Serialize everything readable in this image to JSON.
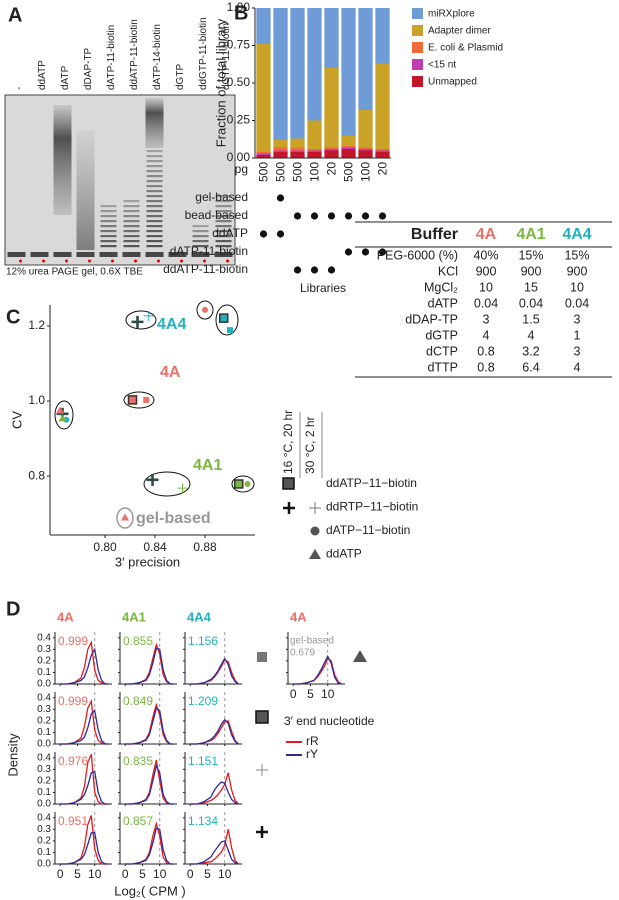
{
  "gel": {
    "lanes": [
      "-",
      "ddATP",
      "dATP",
      "dDAP-TP",
      "dATP-11-biotin",
      "ddATP-11-biotin",
      "dATP-14-biotin",
      "dGTP",
      "ddGTP-11-biotin",
      "dGTP-11-biotin"
    ],
    "caption": "12% urea PAGE gel, 0.6X TBE"
  },
  "chart_data": [
    {
      "type": "bar",
      "stacked": true,
      "ylabel": "Fraction of total library",
      "xlabel": "pg",
      "categories": [
        "500",
        "500",
        "500",
        "100",
        "20",
        "500",
        "100",
        "20"
      ],
      "ylim": [
        0,
        1
      ],
      "yticks": [
        {
          "value": 0,
          "label": "0.00"
        },
        {
          "value": 0.25,
          "label": "0.25"
        },
        {
          "value": 0.5,
          "label": "0.50"
        },
        {
          "value": 0.75,
          "label": "0.75"
        },
        {
          "value": 1,
          "label": "1.00"
        }
      ],
      "series": [
        {
          "name": "miRXplore",
          "color": "#6f9bd6",
          "values": [
            0.24,
            0.88,
            0.87,
            0.75,
            0.4,
            0.85,
            0.68,
            0.37
          ]
        },
        {
          "name": "Adapter dimer",
          "color": "#c9a227",
          "values": [
            0.72,
            0.05,
            0.06,
            0.19,
            0.53,
            0.07,
            0.25,
            0.57
          ]
        },
        {
          "name": "E. coli & Plasmid",
          "color": "#f06a3a",
          "values": [
            0.01,
            0.02,
            0.02,
            0.01,
            0.01,
            0.01,
            0.01,
            0.01
          ]
        },
        {
          "name": "<15 nt",
          "color": "#c23cb2",
          "values": [
            0.01,
            0.01,
            0.01,
            0.01,
            0.01,
            0.01,
            0.01,
            0.01
          ]
        },
        {
          "name": "Unmapped",
          "color": "#c4162a",
          "values": [
            0.02,
            0.04,
            0.04,
            0.04,
            0.05,
            0.06,
            0.05,
            0.04
          ]
        }
      ],
      "libraries": {
        "title": "Libraries",
        "rows": [
          {
            "name": "gel-based",
            "dots": [
              false,
              true,
              false,
              false,
              false,
              false,
              false,
              false
            ]
          },
          {
            "name": "bead-based",
            "dots": [
              false,
              false,
              true,
              true,
              true,
              true,
              true,
              true
            ]
          },
          {
            "name": "ddATP",
            "dots": [
              true,
              true,
              false,
              false,
              false,
              false,
              false,
              false
            ]
          },
          {
            "name": "dATP-11-biotin",
            "dots": [
              false,
              false,
              false,
              false,
              false,
              true,
              true,
              true
            ]
          },
          {
            "name": "ddATP-11-biotin",
            "dots": [
              false,
              false,
              true,
              true,
              true,
              false,
              false,
              false
            ]
          }
        ]
      }
    },
    {
      "type": "scatter",
      "xlabel": "3′ precision",
      "ylabel": "CV",
      "xlim": [
        0.756,
        0.92
      ],
      "xticks": [
        {
          "value": 0.8,
          "label": "0.80"
        },
        {
          "value": 0.84,
          "label": "0.84"
        },
        {
          "value": 0.88,
          "label": "0.88"
        }
      ],
      "ylim": [
        0.643,
        1.256
      ],
      "yticks": [
        0.8,
        {
          "value": 1,
          "label": "1.0"
        },
        1.2
      ],
      "series": [
        {
          "name": "4A",
          "color": "#ec6f6a",
          "x": [
            0.766,
            0.764,
            0.88,
            0.822,
            0.833,
            0.816
          ],
          "values": [
            0.966,
            0.976,
            1.243,
            1.003,
            1.003,
            0.691
          ],
          "markers": [
            "plus",
            "triangle",
            "circle",
            "square",
            "square-light",
            "triangle"
          ]
        },
        {
          "name": "4A4",
          "color": "#1fb3c0",
          "x": [
            0.826,
            0.835,
            0.895,
            0.9,
            0.769
          ],
          "values": [
            1.211,
            1.227,
            1.221,
            1.189,
            0.95
          ],
          "markers": [
            "plus",
            "plus-light",
            "square",
            "square-light",
            "circle"
          ]
        },
        {
          "name": "4A1",
          "color": "#79b73f",
          "x": [
            0.838,
            0.862,
            0.907,
            0.914,
            0.766
          ],
          "values": [
            0.79,
            0.768,
            0.779,
            0.779,
            0.955
          ],
          "markers": [
            "plus",
            "plus-light",
            "square",
            "circle",
            "triangle"
          ]
        }
      ],
      "annotation": "gel-based",
      "marker_legend": {
        "headers": [
          "16 °C, 20 hr",
          "30 °C, 2 hr"
        ],
        "items": [
          "ddATP−11−biotin",
          "ddRTP−11−biotin",
          "dATP−11−biotin",
          "ddATP"
        ]
      }
    },
    {
      "type": "density",
      "xlabel": "Log₂( CPM )",
      "ylabel": "Density",
      "x": [
        0,
        2,
        4,
        6,
        7,
        8,
        9,
        10,
        11,
        12,
        13,
        14
      ],
      "xlim": [
        -1.5,
        15
      ],
      "xticks": [
        0,
        5,
        10
      ],
      "ylim": [
        0,
        0.45
      ],
      "yticks": [
        {
          "value": 0,
          "label": "0.0"
        },
        0.1,
        0.2,
        0.3,
        0.4
      ],
      "vline": 10,
      "legend_title": "3′ end nucleotide",
      "series": [
        {
          "name": "rR",
          "color": "#e41a1c"
        },
        {
          "name": "rY",
          "color": "#2b2b9c"
        }
      ],
      "columns": [
        {
          "name": "4A",
          "color": "#ec6f6a"
        },
        {
          "name": "4A1",
          "color": "#79b73f"
        },
        {
          "name": "4A4",
          "color": "#1fb3c0"
        }
      ],
      "rows": [
        [
          {
            "value": 0.999,
            "rR": [
              0,
              0,
              0.01,
              0.05,
              0.14,
              0.3,
              0.36,
              0.12,
              0.03,
              0.01,
              0,
              0
            ],
            "rY": [
              0,
              0,
              0.01,
              0.03,
              0.06,
              0.14,
              0.25,
              0.3,
              0.12,
              0.03,
              0,
              0
            ]
          },
          {
            "value": 0.855,
            "rR": [
              0,
              0,
              0.01,
              0.04,
              0.1,
              0.22,
              0.34,
              0.26,
              0.08,
              0.02,
              0,
              0
            ],
            "rY": [
              0,
              0,
              0.01,
              0.03,
              0.08,
              0.18,
              0.31,
              0.3,
              0.12,
              0.03,
              0,
              0
            ]
          },
          {
            "value": 1.156,
            "rR": [
              0,
              0,
              0.01,
              0.03,
              0.06,
              0.1,
              0.15,
              0.21,
              0.19,
              0.1,
              0.03,
              0
            ],
            "rY": [
              0,
              0,
              0.01,
              0.04,
              0.07,
              0.11,
              0.17,
              0.22,
              0.17,
              0.07,
              0.02,
              0
            ]
          }
        ],
        [
          {
            "value": 0.999,
            "rR": [
              0,
              0,
              0.01,
              0.05,
              0.15,
              0.31,
              0.37,
              0.12,
              0.03,
              0.01,
              0,
              0
            ],
            "rY": [
              0,
              0,
              0.01,
              0.03,
              0.06,
              0.14,
              0.26,
              0.29,
              0.12,
              0.03,
              0,
              0
            ]
          },
          {
            "value": 0.849,
            "rR": [
              0,
              0,
              0.01,
              0.04,
              0.1,
              0.23,
              0.34,
              0.25,
              0.08,
              0.02,
              0,
              0
            ],
            "rY": [
              0,
              0,
              0.01,
              0.03,
              0.08,
              0.19,
              0.31,
              0.29,
              0.11,
              0.03,
              0,
              0
            ]
          },
          {
            "value": 1.209,
            "rR": [
              0,
              0,
              0.01,
              0.03,
              0.05,
              0.09,
              0.14,
              0.19,
              0.2,
              0.11,
              0.03,
              0
            ],
            "rY": [
              0,
              0,
              0.01,
              0.04,
              0.07,
              0.11,
              0.17,
              0.21,
              0.18,
              0.08,
              0.02,
              0
            ]
          }
        ],
        [
          {
            "value": 0.976,
            "rR": [
              0,
              0,
              0.01,
              0.05,
              0.15,
              0.36,
              0.43,
              0.1,
              0.02,
              0,
              0,
              0
            ],
            "rY": [
              0,
              0,
              0.01,
              0.04,
              0.08,
              0.16,
              0.27,
              0.28,
              0.1,
              0.02,
              0,
              0
            ]
          },
          {
            "value": 0.835,
            "rR": [
              0,
              0,
              0.01,
              0.04,
              0.1,
              0.25,
              0.38,
              0.2,
              0.05,
              0.01,
              0,
              0
            ],
            "rY": [
              0,
              0,
              0.01,
              0.03,
              0.08,
              0.2,
              0.33,
              0.27,
              0.08,
              0.02,
              0,
              0
            ]
          },
          {
            "value": 1.151,
            "rR": [
              0,
              0,
              0.01,
              0.03,
              0.05,
              0.08,
              0.12,
              0.17,
              0.27,
              0.12,
              0.03,
              0
            ],
            "rY": [
              0,
              0,
              0.02,
              0.06,
              0.12,
              0.16,
              0.19,
              0.18,
              0.1,
              0.04,
              0.01,
              0
            ]
          }
        ],
        [
          {
            "value": 0.951,
            "rR": [
              0,
              0,
              0.01,
              0.05,
              0.15,
              0.34,
              0.42,
              0.13,
              0.03,
              0,
              0,
              0
            ],
            "rY": [
              0,
              0,
              0.01,
              0.04,
              0.08,
              0.17,
              0.27,
              0.27,
              0.1,
              0.02,
              0,
              0
            ]
          },
          {
            "value": 0.857,
            "rR": [
              0,
              0,
              0.01,
              0.04,
              0.1,
              0.24,
              0.35,
              0.24,
              0.06,
              0.01,
              0,
              0
            ],
            "rY": [
              0,
              0,
              0.01,
              0.03,
              0.08,
              0.18,
              0.31,
              0.3,
              0.12,
              0.03,
              0,
              0
            ]
          },
          {
            "value": 1.134,
            "rR": [
              0,
              0,
              0.01,
              0.02,
              0.04,
              0.07,
              0.1,
              0.16,
              0.3,
              0.14,
              0.03,
              0
            ],
            "rY": [
              0,
              0,
              0.02,
              0.06,
              0.11,
              0.15,
              0.19,
              0.2,
              0.12,
              0.04,
              0.01,
              0
            ]
          }
        ]
      ],
      "gel_based": {
        "column": "4A",
        "note": "gel-based",
        "value": 0.679,
        "rR": [
          0,
          0,
          0.01,
          0.03,
          0.06,
          0.1,
          0.15,
          0.22,
          0.2,
          0.08,
          0.02,
          0
        ],
        "rY": [
          0,
          0,
          0.01,
          0.03,
          0.07,
          0.12,
          0.18,
          0.24,
          0.18,
          0.06,
          0.01,
          0
        ]
      }
    }
  ],
  "buffer_table": {
    "header": [
      "Buffer",
      "4A",
      "4A1",
      "4A4"
    ],
    "rows": [
      [
        "PEG-6000 (%)",
        "40%",
        "15%",
        "15%"
      ],
      [
        "KCl",
        "900",
        "900",
        "900"
      ],
      [
        "MgCl₂",
        "10",
        "15",
        "10"
      ],
      [
        "dATP",
        "0.04",
        "0.04",
        "0.04"
      ],
      [
        "dDAP-TP",
        "3",
        "1.5",
        "3"
      ],
      [
        "dGTP",
        "4",
        "4",
        "1"
      ],
      [
        "dCTP",
        "0.8",
        "3.2",
        "3"
      ],
      [
        "dTTP",
        "0.8",
        "6.4",
        "4"
      ]
    ]
  }
}
